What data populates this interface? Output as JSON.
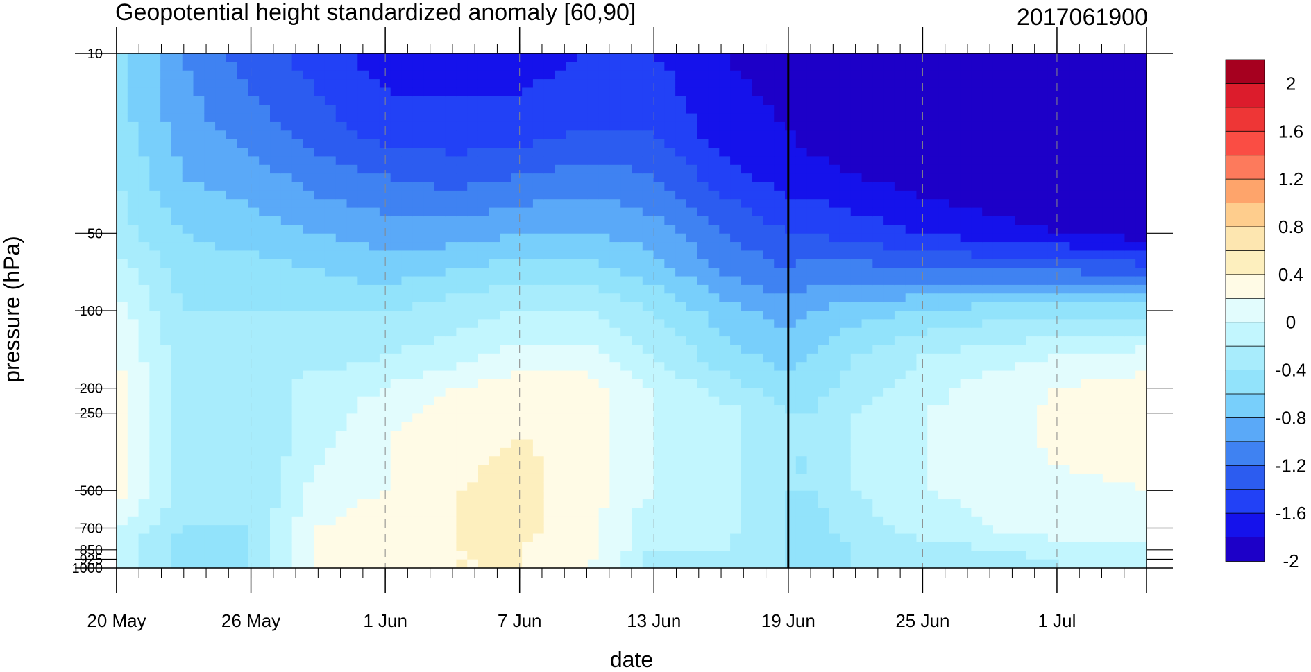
{
  "chart_data": {
    "type": "heatmap",
    "title": "Geopotential height standardized anomaly [60,90]",
    "date_label": "2017061900",
    "xlabel": "date",
    "ylabel": "pressure (hPa)",
    "y_scale": "log",
    "y_reversed": true,
    "xlim": [
      "2017-05-20",
      "2017-07-05"
    ],
    "ylim": [
      1000,
      10
    ],
    "x_tick_labels": [
      "20 May",
      "26 May",
      "1 Jun",
      "7 Jun",
      "13 Jun",
      "19 Jun",
      "25 Jun",
      "1 Jul"
    ],
    "x_tick_dates": [
      "2017-05-20",
      "2017-05-26",
      "2017-06-01",
      "2017-06-07",
      "2017-06-13",
      "2017-06-19",
      "2017-06-25",
      "2017-07-01"
    ],
    "y_tick_labels": [
      "10",
      "50",
      "100",
      "200",
      "250",
      "500",
      "700",
      "850",
      "925",
      "1000"
    ],
    "y_ticks": [
      10,
      50,
      100,
      200,
      250,
      500,
      700,
      850,
      925,
      1000
    ],
    "analysis_date_line": "2017-06-19",
    "colorbar_labels": [
      "2",
      "1.6",
      "1.2",
      "0.8",
      "0.4",
      "0",
      "-0.4",
      "-0.8",
      "-1.2",
      "-1.6",
      "-2"
    ],
    "contour_levels": [
      -2.2,
      -2.0,
      -1.8,
      -1.6,
      -1.4,
      -1.2,
      -1.0,
      -0.8,
      -0.6,
      -0.4,
      -0.2,
      0.0,
      0.2,
      0.4,
      0.6,
      0.8,
      1.0,
      1.2,
      1.4,
      1.6,
      1.8,
      2.0
    ],
    "colors": [
      "#1d00c8",
      "#1512eb",
      "#2241f6",
      "#2c5cf0",
      "#3f82f2",
      "#5aa9f8",
      "#78cffb",
      "#92e3fb",
      "#a8ecfc",
      "#c2f6fe",
      "#e2fcfd",
      "#fffbe6",
      "#fdefbe",
      "#fde6b0",
      "#fecd8d",
      "#fea46b",
      "#fd7a5c",
      "#fa4d44",
      "#ee3636",
      "#dc1c2c",
      "#a6001f"
    ],
    "pressure_levels": [
      10,
      20,
      30,
      50,
      70,
      100,
      150,
      200,
      250,
      300,
      400,
      500,
      700,
      850,
      925,
      1000
    ],
    "dates": [
      "2017-05-20",
      "2017-05-23",
      "2017-05-26",
      "2017-05-29",
      "2017-06-01",
      "2017-06-04",
      "2017-06-07",
      "2017-06-10",
      "2017-06-13",
      "2017-06-16",
      "2017-06-19",
      "2017-06-20",
      "2017-06-22",
      "2017-06-25",
      "2017-06-28",
      "2017-07-01",
      "2017-07-05"
    ],
    "values": [
      [
        -0.7,
        -1.2,
        -1.5,
        -1.7,
        -1.9,
        -1.9,
        -1.9,
        -1.8,
        -1.8,
        -2.0,
        -2.1,
        -2.2,
        -2.3,
        -2.3,
        -2.3,
        -2.3,
        -2.3
      ],
      [
        -0.7,
        -1.1,
        -1.3,
        -1.5,
        -1.7,
        -1.7,
        -1.7,
        -1.6,
        -1.6,
        -1.9,
        -2.0,
        -2.1,
        -2.2,
        -2.3,
        -2.3,
        -2.3,
        -2.3
      ],
      [
        -0.6,
        -1.0,
        -1.1,
        -1.3,
        -1.4,
        -1.5,
        -1.4,
        -1.3,
        -1.4,
        -1.7,
        -1.9,
        -1.9,
        -2.0,
        -2.1,
        -2.2,
        -2.2,
        -2.3
      ],
      [
        -0.5,
        -0.8,
        -0.9,
        -1.0,
        -1.1,
        -1.1,
        -1.0,
        -1.0,
        -1.1,
        -1.4,
        -1.6,
        -1.6,
        -1.7,
        -1.8,
        -1.9,
        -2.0,
        -2.1
      ],
      [
        -0.3,
        -0.7,
        -0.7,
        -0.8,
        -0.9,
        -0.8,
        -0.7,
        -0.7,
        -0.9,
        -1.2,
        -1.4,
        -1.3,
        -1.3,
        -1.4,
        -1.4,
        -1.4,
        -1.5
      ],
      [
        -0.1,
        -0.6,
        -0.6,
        -0.6,
        -0.6,
        -0.5,
        -0.4,
        -0.4,
        -0.6,
        -0.9,
        -1.1,
        -1.0,
        -0.9,
        -0.8,
        -0.7,
        -0.7,
        -0.7
      ],
      [
        0.0,
        -0.5,
        -0.5,
        -0.5,
        -0.4,
        -0.3,
        -0.1,
        -0.1,
        -0.4,
        -0.7,
        -0.9,
        -0.8,
        -0.6,
        -0.4,
        -0.3,
        -0.2,
        -0.1
      ],
      [
        0.1,
        -0.5,
        -0.5,
        -0.3,
        -0.2,
        0.0,
        0.1,
        0.1,
        -0.2,
        -0.5,
        -0.7,
        -0.7,
        -0.5,
        -0.3,
        -0.1,
        0.0,
        0.1
      ],
      [
        0.1,
        -0.5,
        -0.6,
        -0.3,
        -0.1,
        0.1,
        0.2,
        0.1,
        -0.2,
        -0.3,
        -0.6,
        -0.6,
        -0.4,
        -0.2,
        -0.1,
        0.05,
        0.1
      ],
      [
        0.1,
        -0.5,
        -0.6,
        -0.3,
        0.0,
        0.1,
        0.2,
        0.1,
        -0.2,
        -0.3,
        -0.6,
        -0.6,
        -0.4,
        -0.2,
        -0.1,
        0.05,
        0.1
      ],
      [
        0.1,
        -0.5,
        -0.6,
        -0.2,
        0.0,
        0.15,
        0.25,
        0.1,
        -0.2,
        -0.3,
        -0.6,
        -0.6,
        -0.4,
        -0.2,
        -0.1,
        0.0,
        0.05
      ],
      [
        0.1,
        -0.5,
        -0.6,
        -0.1,
        0.0,
        0.2,
        0.25,
        0.1,
        -0.2,
        -0.3,
        -0.6,
        -0.6,
        -0.4,
        -0.2,
        -0.15,
        -0.05,
        0.0
      ],
      [
        -0.2,
        -0.6,
        -0.6,
        0.0,
        0.1,
        0.2,
        0.25,
        0.1,
        -0.4,
        -0.3,
        -0.6,
        -0.7,
        -0.5,
        -0.3,
        -0.2,
        -0.1,
        -0.1
      ],
      [
        -0.3,
        -0.7,
        -0.6,
        0.0,
        0.1,
        0.2,
        0.2,
        0.1,
        -0.4,
        -0.4,
        -0.6,
        -0.7,
        -0.6,
        -0.5,
        -0.4,
        -0.3,
        -0.25
      ],
      [
        -0.3,
        -0.7,
        -0.6,
        0.05,
        0.1,
        0.2,
        0.2,
        0.05,
        -0.5,
        -0.5,
        -0.6,
        -0.7,
        -0.6,
        -0.5,
        -0.5,
        -0.4,
        -0.3
      ],
      [
        -0.3,
        -0.7,
        -0.6,
        0.05,
        0.1,
        0.2,
        0.2,
        0.0,
        -0.5,
        -0.6,
        -0.6,
        -0.7,
        -0.6,
        -0.5,
        -0.5,
        -0.4,
        -0.3
      ]
    ]
  }
}
